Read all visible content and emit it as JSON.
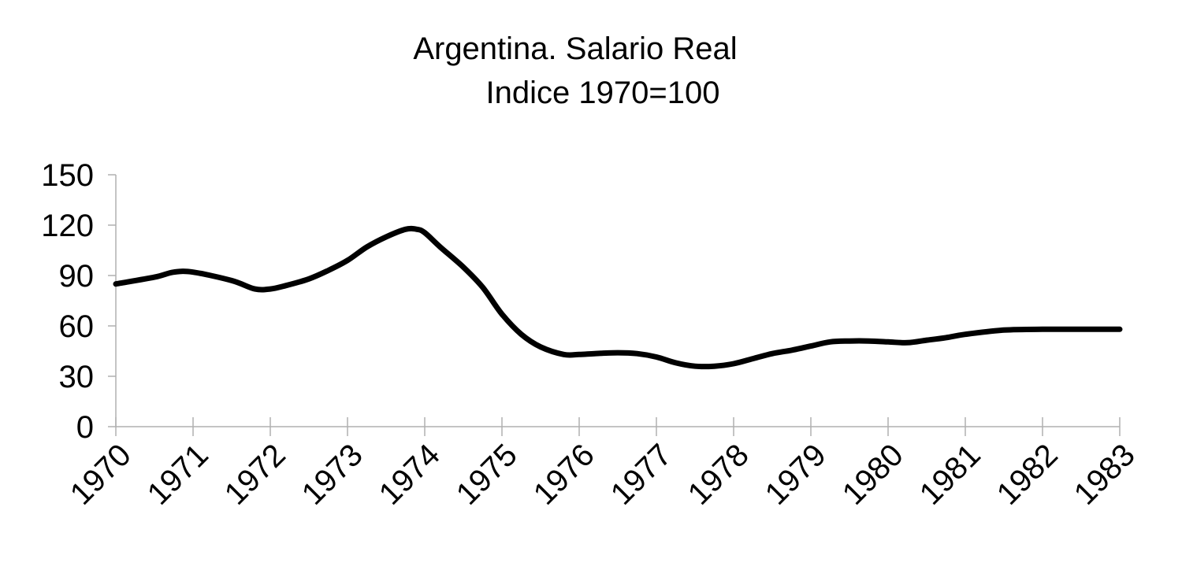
{
  "chart_data": {
    "type": "line",
    "title": "Argentina. Salario Real",
    "subtitle": "Indice 1970=100",
    "xlabel": "",
    "ylabel": "",
    "ylim": [
      0,
      150
    ],
    "yticks": [
      0,
      30,
      60,
      90,
      120,
      150
    ],
    "xlim": [
      1970,
      1983
    ],
    "xticks": [
      "1970",
      "1971",
      "1972",
      "1973",
      "1974",
      "1975",
      "1976",
      "1977",
      "1978",
      "1979",
      "1980",
      "1981",
      "1982",
      "1983"
    ],
    "grid": false,
    "line_color": "#000000",
    "series": [
      {
        "x": [
          1970,
          1970.5,
          1970.75,
          1971,
          1971.5,
          1971.8,
          1972,
          1972.2,
          1972.5,
          1972.75,
          1973,
          1973.25,
          1973.5,
          1973.75,
          1973.9,
          1974,
          1974.2,
          1974.5,
          1974.75,
          1975,
          1975.25,
          1975.5,
          1975.8,
          1976,
          1976.2,
          1976.5,
          1976.75,
          1977,
          1977.25,
          1977.5,
          1977.75,
          1978,
          1978.25,
          1978.5,
          1978.75,
          1979,
          1979.25,
          1979.5,
          1979.75,
          1980,
          1980.25,
          1980.5,
          1980.75,
          1981,
          1981.5,
          1982,
          1982.5,
          1983
        ],
        "values": [
          85,
          89,
          92,
          92,
          87,
          82,
          82,
          84,
          88,
          93,
          99,
          107,
          113,
          117.5,
          117.5,
          115.5,
          107,
          95,
          83,
          67,
          55,
          47.5,
          43,
          43,
          43.5,
          44,
          43.5,
          41.5,
          38,
          36,
          36,
          37.5,
          40.5,
          43.5,
          45.5,
          48,
          50.5,
          51,
          51,
          50.5,
          50,
          51.5,
          53,
          55,
          57.5,
          58,
          58,
          58
        ]
      }
    ]
  }
}
